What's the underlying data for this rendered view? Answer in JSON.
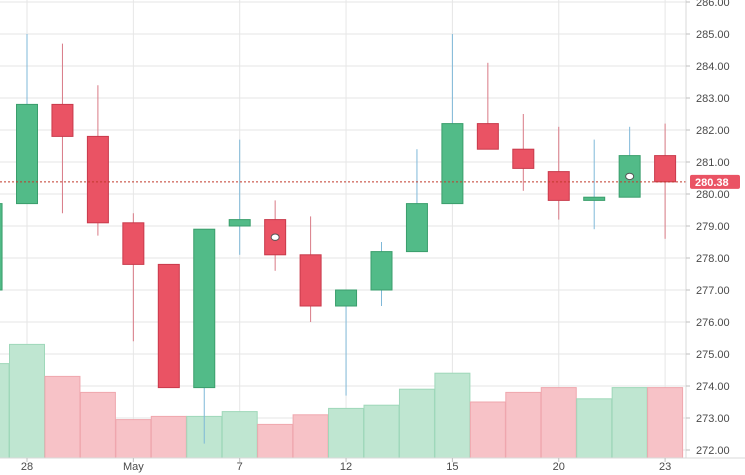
{
  "chart_data": {
    "type": "candlestick",
    "colors": {
      "up": "#52bb88",
      "down": "#ea5364",
      "up_volume": "#bfe6d1",
      "down_volume": "#f7c2c7",
      "grid": "#e6e6e6",
      "last_price_line": "#c0392b",
      "last_price_bg": "#ea5364"
    },
    "grid": true,
    "ylim": [
      271.8,
      286.0
    ],
    "y_ticks": [
      "272.00",
      "273.00",
      "274.00",
      "275.00",
      "276.00",
      "277.00",
      "278.00",
      "279.00",
      "280.00",
      "281.00",
      "282.00",
      "283.00",
      "284.00",
      "285.00",
      "286.00"
    ],
    "x_tick_labels": [
      {
        "index": 0,
        "label": "28"
      },
      {
        "index": 3,
        "label": "May"
      },
      {
        "index": 6,
        "label": "7"
      },
      {
        "index": 9,
        "label": "12"
      },
      {
        "index": 12,
        "label": "15"
      },
      {
        "index": 15,
        "label": "20"
      },
      {
        "index": 18,
        "label": "23"
      }
    ],
    "last_price": "280.38",
    "candles": [
      {
        "open": 279.7,
        "high": 285.0,
        "low": 279.7,
        "close": 282.8,
        "volume": 275.3,
        "marker": false
      },
      {
        "open": 282.8,
        "high": 284.7,
        "low": 279.4,
        "close": 281.8,
        "volume": 274.3,
        "marker": false
      },
      {
        "open": 281.8,
        "high": 283.4,
        "low": 278.7,
        "close": 279.1,
        "volume": 273.8,
        "marker": false
      },
      {
        "open": 279.1,
        "high": 279.4,
        "low": 275.4,
        "close": 277.8,
        "volume": 272.95,
        "marker": false
      },
      {
        "open": 277.8,
        "high": 277.8,
        "low": 273.95,
        "close": 273.95,
        "volume": 273.05,
        "marker": false
      },
      {
        "open": 273.95,
        "high": 278.9,
        "low": 272.2,
        "close": 278.9,
        "volume": 273.05,
        "marker": false
      },
      {
        "open": 279.0,
        "high": 281.7,
        "low": 278.1,
        "close": 279.2,
        "volume": 273.2,
        "marker": false
      },
      {
        "open": 279.2,
        "high": 279.8,
        "low": 277.6,
        "close": 278.1,
        "volume": 272.8,
        "marker": true
      },
      {
        "open": 278.1,
        "high": 279.3,
        "low": 276.0,
        "close": 276.5,
        "volume": 273.1,
        "marker": false
      },
      {
        "open": 276.5,
        "high": 277.0,
        "low": 273.7,
        "close": 277.0,
        "volume": 273.3,
        "marker": false
      },
      {
        "open": 277.0,
        "high": 278.5,
        "low": 276.5,
        "close": 278.2,
        "volume": 273.4,
        "marker": false
      },
      {
        "open": 278.2,
        "high": 281.4,
        "low": 278.2,
        "close": 279.7,
        "volume": 273.9,
        "marker": false
      },
      {
        "open": 279.7,
        "high": 285.0,
        "low": 279.7,
        "close": 282.2,
        "volume": 274.4,
        "marker": false
      },
      {
        "open": 282.2,
        "high": 284.1,
        "low": 281.4,
        "close": 281.4,
        "volume": 273.5,
        "marker": false
      },
      {
        "open": 281.4,
        "high": 282.5,
        "low": 280.1,
        "close": 280.8,
        "volume": 273.8,
        "marker": false
      },
      {
        "open": 280.7,
        "high": 282.1,
        "low": 279.2,
        "close": 279.8,
        "volume": 273.95,
        "marker": false
      },
      {
        "open": 279.8,
        "high": 281.7,
        "low": 278.9,
        "close": 279.9,
        "volume": 273.6,
        "marker": false
      },
      {
        "open": 279.9,
        "high": 282.1,
        "low": 279.9,
        "close": 281.2,
        "volume": 273.95,
        "marker": true
      },
      {
        "open": 281.2,
        "high": 282.2,
        "low": 278.6,
        "close": 280.38,
        "volume": 273.95,
        "marker": false
      }
    ],
    "partial_left_candle": {
      "open": 277.0,
      "close": 279.7,
      "high": 279.7,
      "low": 277.0,
      "volume": 274.7
    }
  }
}
